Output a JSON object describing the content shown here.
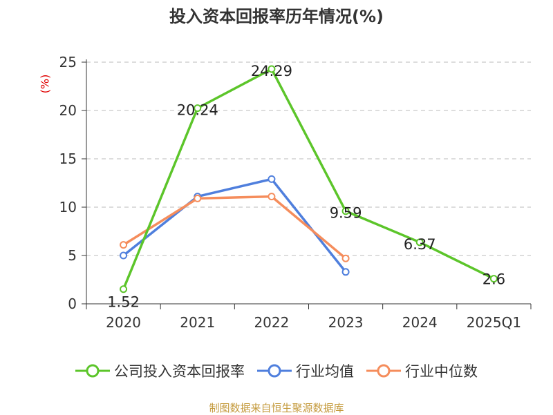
{
  "chart_data": {
    "type": "line",
    "title": "投入资本回报率历年情况(%)",
    "ylabel": "(%)",
    "categories": [
      "2020",
      "2021",
      "2022",
      "2023",
      "2024",
      "2025Q1"
    ],
    "ylim": [
      0,
      25
    ],
    "yticks": [
      0,
      5,
      10,
      15,
      20,
      25
    ],
    "grid": true,
    "legend_position": "bottom",
    "series": [
      {
        "name": "公司投入资本回报率",
        "color": "#5cc52a",
        "values": [
          1.52,
          20.24,
          24.29,
          9.59,
          6.37,
          2.6
        ],
        "labels": [
          "1.52",
          "20.24",
          "24.29",
          "9.59",
          "6.37",
          "2.6"
        ]
      },
      {
        "name": "行业均值",
        "color": "#4f7fdd",
        "values": [
          5.0,
          11.1,
          12.9,
          3.3,
          null,
          null
        ]
      },
      {
        "name": "行业中位数",
        "color": "#f58d5c",
        "values": [
          6.1,
          10.9,
          11.1,
          4.7,
          null,
          null
        ]
      }
    ]
  },
  "source": "制图数据来自恒生聚源数据库"
}
